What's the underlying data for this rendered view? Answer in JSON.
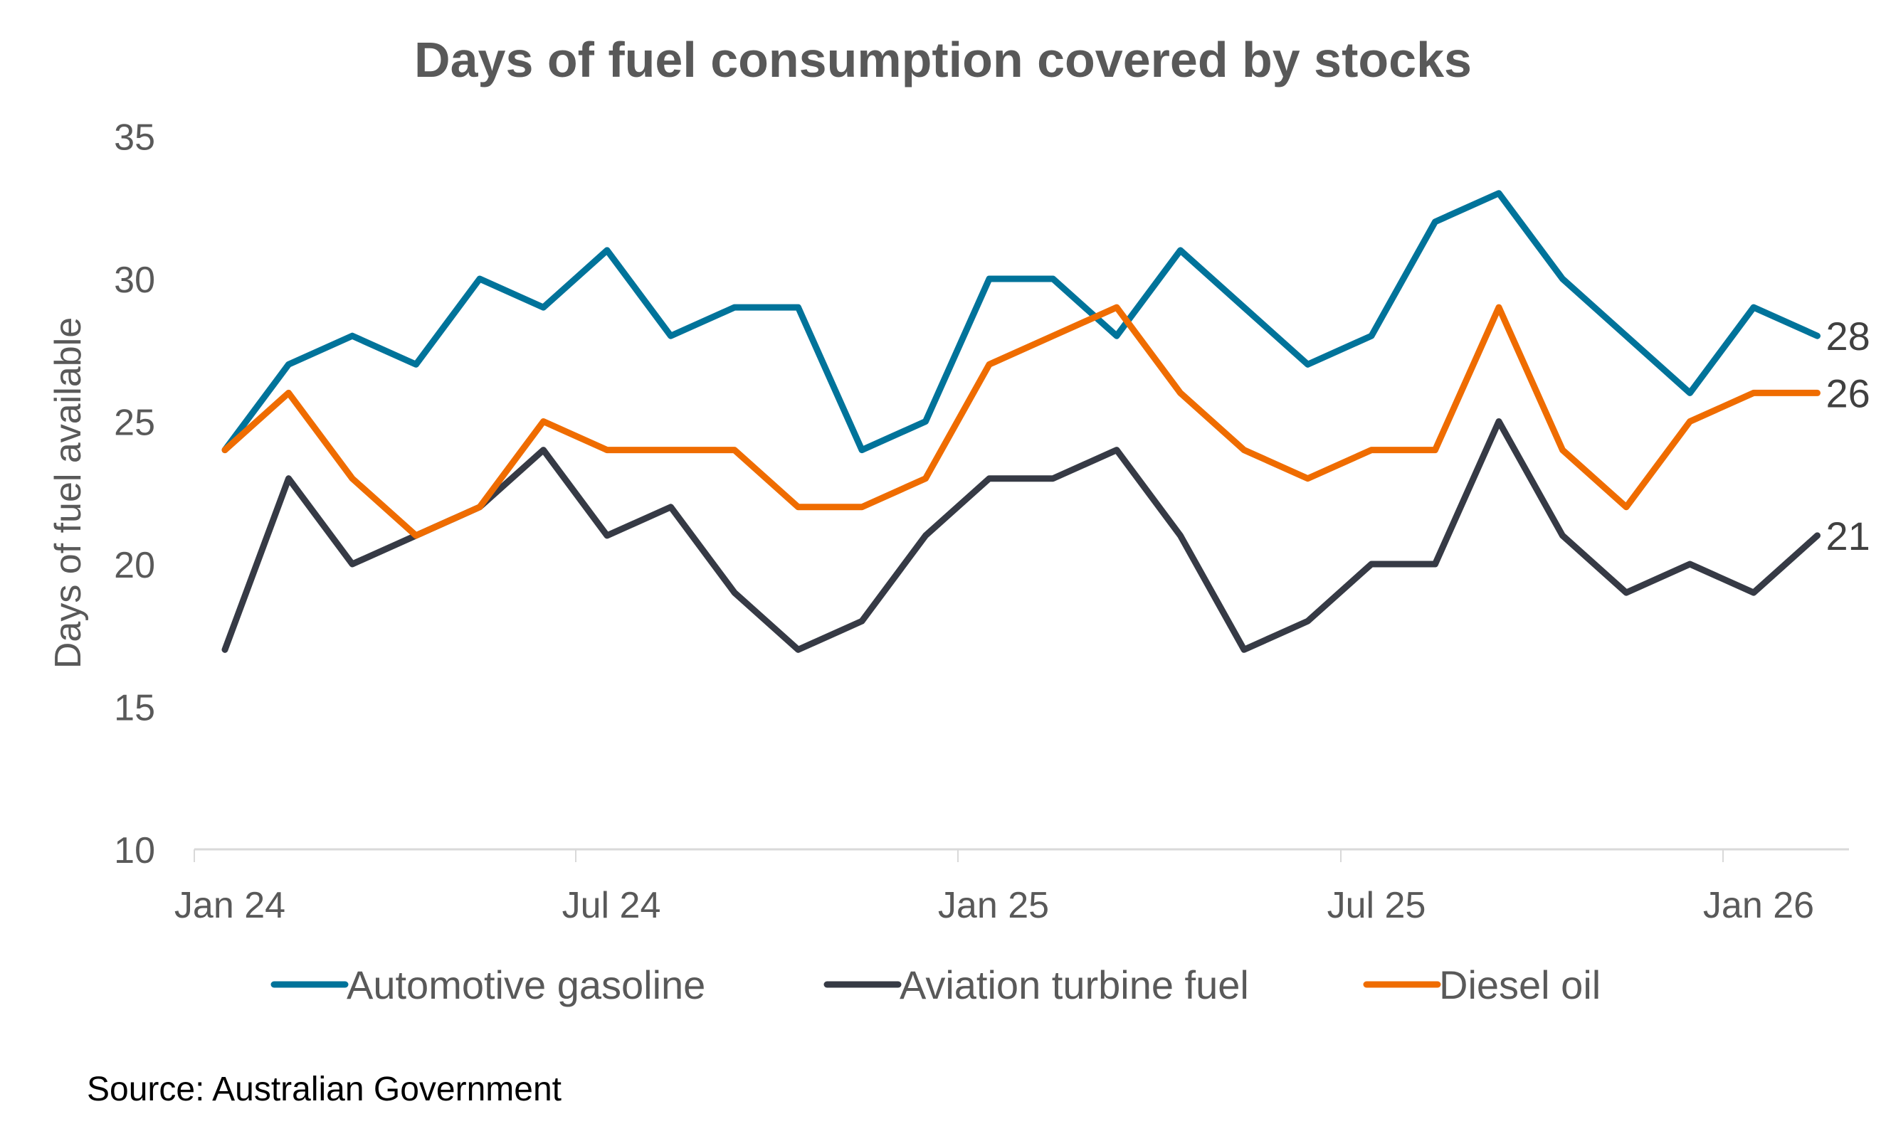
{
  "chart_data": {
    "type": "line",
    "title": "Days of fuel consumption covered by stocks",
    "xlabel": "",
    "ylabel": "Days of fuel available",
    "ylim": [
      10,
      35
    ],
    "yticks": [
      10,
      15,
      20,
      25,
      30,
      35
    ],
    "x": [
      "Jan 24",
      "Feb 24",
      "Mar 24",
      "Apr 24",
      "May 24",
      "Jun 24",
      "Jul 24",
      "Aug 24",
      "Sep 24",
      "Oct 24",
      "Nov 24",
      "Dec 24",
      "Jan 25",
      "Feb 25",
      "Mar 25",
      "Apr 25",
      "May 25",
      "Jun 25",
      "Jul 25",
      "Aug 25",
      "Sep 25",
      "Oct 25",
      "Nov 25",
      "Dec 25",
      "Jan 26",
      "Feb 26"
    ],
    "xticks": [
      "Jan 24",
      "Jul 24",
      "Jan 25",
      "Jul 25",
      "Jan 26"
    ],
    "grid": false,
    "legend_position": "bottom",
    "series": [
      {
        "name": "Automotive gasoline",
        "color": "#00739A",
        "values": [
          24,
          27,
          28,
          27,
          30,
          29,
          31,
          28,
          29,
          29,
          24,
          25,
          30,
          30,
          28,
          31,
          29,
          27,
          28,
          32,
          33,
          30,
          28,
          26,
          29,
          28
        ],
        "end_label": "28"
      },
      {
        "name": "Aviation turbine fuel",
        "color": "#363A45",
        "values": [
          17,
          23,
          20,
          21,
          22,
          24,
          21,
          22,
          19,
          17,
          18,
          21,
          23,
          23,
          24,
          21,
          17,
          18,
          20,
          20,
          25,
          21,
          19,
          20,
          19,
          21
        ],
        "end_label": "21"
      },
      {
        "name": "Diesel oil",
        "color": "#EF6C00",
        "values": [
          24,
          26,
          23,
          21,
          22,
          25,
          24,
          24,
          24,
          22,
          22,
          23,
          27,
          28,
          29,
          26,
          24,
          23,
          24,
          24,
          29,
          24,
          22,
          25,
          26,
          26
        ],
        "end_label": "26"
      }
    ],
    "source": "Source: Australian Government"
  }
}
